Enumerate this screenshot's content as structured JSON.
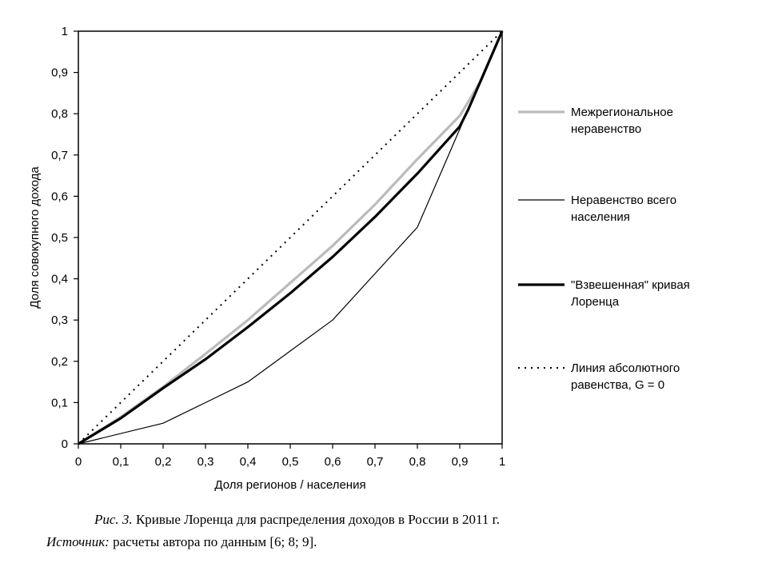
{
  "chart_data": {
    "type": "line",
    "xlabel": "Доля регионов / населения",
    "ylabel": "Доля совокупного дохода",
    "xlim": [
      0,
      1
    ],
    "ylim": [
      0,
      1
    ],
    "xticks": [
      "0",
      "0,1",
      "0,2",
      "0,3",
      "0,4",
      "0,5",
      "0,6",
      "0,7",
      "0,8",
      "0,9",
      "1"
    ],
    "yticks": [
      "0",
      "0,1",
      "0,2",
      "0,3",
      "0,4",
      "0,5",
      "0,6",
      "0,7",
      "0,8",
      "0,9",
      "1"
    ],
    "grid": false,
    "legend_position": "right",
    "series": [
      {
        "name": "Межрегиональное неравенство",
        "color": "#bbbbbb",
        "style": "thick",
        "x": [
          0,
          0.1,
          0.2,
          0.3,
          0.4,
          0.5,
          0.6,
          0.7,
          0.8,
          0.9,
          0.95,
          1
        ],
        "y": [
          0,
          0.065,
          0.138,
          0.218,
          0.3,
          0.39,
          0.48,
          0.58,
          0.69,
          0.795,
          0.88,
          1
        ]
      },
      {
        "name": "Неравенство всего населения",
        "color": "#000000",
        "style": "thin",
        "x": [
          0,
          0.2,
          0.4,
          0.6,
          0.8,
          0.92,
          1
        ],
        "y": [
          0,
          0.05,
          0.15,
          0.3,
          0.525,
          0.81,
          1
        ]
      },
      {
        "name": "\"Взвешенная\" кривая Лоренца",
        "color": "#000000",
        "style": "thick",
        "x": [
          0,
          0.1,
          0.2,
          0.3,
          0.4,
          0.5,
          0.6,
          0.7,
          0.8,
          0.9,
          0.92,
          1
        ],
        "y": [
          0,
          0.062,
          0.135,
          0.205,
          0.283,
          0.365,
          0.453,
          0.55,
          0.655,
          0.769,
          0.81,
          1
        ]
      },
      {
        "name": "Линия абсолютного равенства, G = 0",
        "color": "#000000",
        "style": "dotted",
        "x": [
          0,
          1
        ],
        "y": [
          0,
          1
        ]
      }
    ]
  },
  "legend": [
    {
      "line1": "Межрегиональное",
      "line2": "неравенство"
    },
    {
      "line1": "Неравенство всего",
      "line2": "населения"
    },
    {
      "line1": "\"Взвешенная\" кривая",
      "line2": "Лоренца"
    },
    {
      "line1": "Линия абсолютного",
      "line2": "равенства, G = 0"
    }
  ],
  "caption": {
    "fig": "Рис. 3.",
    "text": " Кривые Лоренца для распределения доходов в России в 2011 г."
  },
  "source": {
    "label": "Источник:",
    "text": " расчеты автора по данным [6; 8; 9]."
  }
}
